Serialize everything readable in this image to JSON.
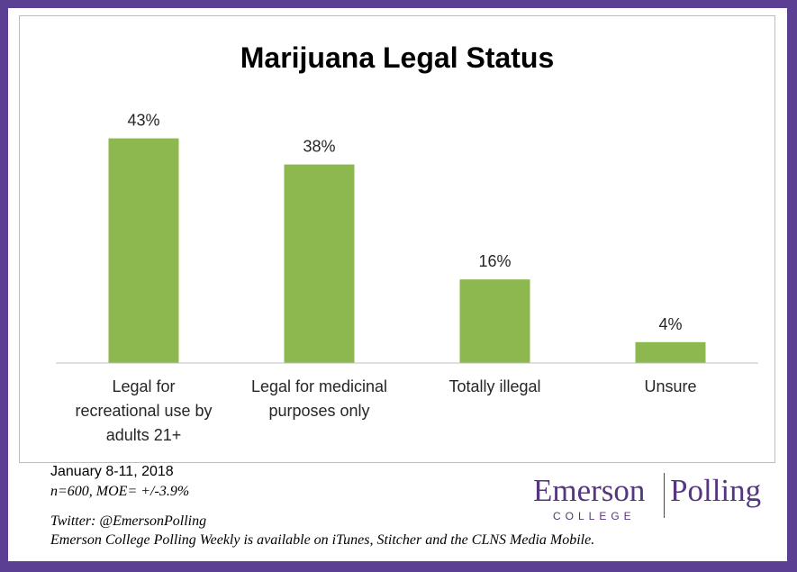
{
  "chart_data": {
    "type": "bar",
    "title": "Marijuana Legal Status",
    "categories": [
      "Legal for recreational use by adults 21+",
      "Legal for medicinal purposes only",
      "Totally illegal",
      "Unsure"
    ],
    "category_lines": [
      [
        "Legal for",
        "recreational use by",
        "adults 21+"
      ],
      [
        "Legal for medicinal",
        "purposes only"
      ],
      [
        "Totally illegal"
      ],
      [
        "Unsure"
      ]
    ],
    "values": [
      43,
      38,
      16,
      4
    ],
    "data_labels": [
      "43%",
      "38%",
      "16%",
      "4%"
    ],
    "ylim": [
      0,
      50
    ],
    "bar_color": "#8db84f",
    "grid": false,
    "legend": "none"
  },
  "footer": {
    "date": "January 8-11, 2018",
    "sample": "n=600, MOE= +/-3.9%",
    "twitter": "Twitter: @EmersonPolling",
    "weekly": "Emerson College Polling Weekly is available on iTunes, Stitcher and the CLNS Media Mobile."
  },
  "logo": {
    "emerson": "Emerson",
    "polling": "Polling",
    "college": "COLLEGE",
    "color": "#55377f"
  },
  "colors": {
    "frame": "#5b3f93",
    "background": "#ffffff"
  }
}
